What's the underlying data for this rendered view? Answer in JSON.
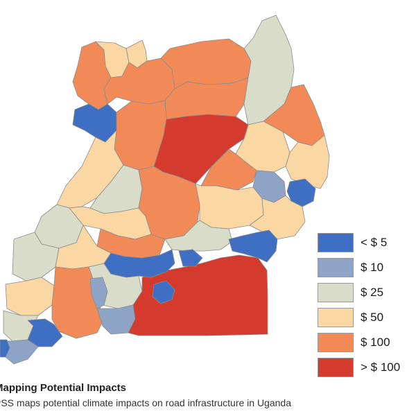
{
  "map": {
    "colors": {
      "lt5": "#3e6fc3",
      "c10": "#8ea4c6",
      "c25": "#d8dcc9",
      "c50": "#fbd7a4",
      "c100": "#f28a58",
      "gt100": "#d43a2d",
      "boundary": "#8a8a8a"
    },
    "legend": [
      {
        "label": "< $ 5",
        "color": "#3e6fc3"
      },
      {
        "label": "$ 10",
        "color": "#8ea4c6"
      },
      {
        "label": "$ 25",
        "color": "#d8dcc9"
      },
      {
        "label": "$ 50",
        "color": "#fbd7a4"
      },
      {
        "label": "$ 100",
        "color": "#f28a58"
      },
      {
        "label": "> $ 100",
        "color": "#d43a2d"
      }
    ]
  },
  "caption": {
    "title": "Mapping Potential Impacts",
    "text": "PSS maps potential climate impacts on road infrastructure in Uganda"
  }
}
